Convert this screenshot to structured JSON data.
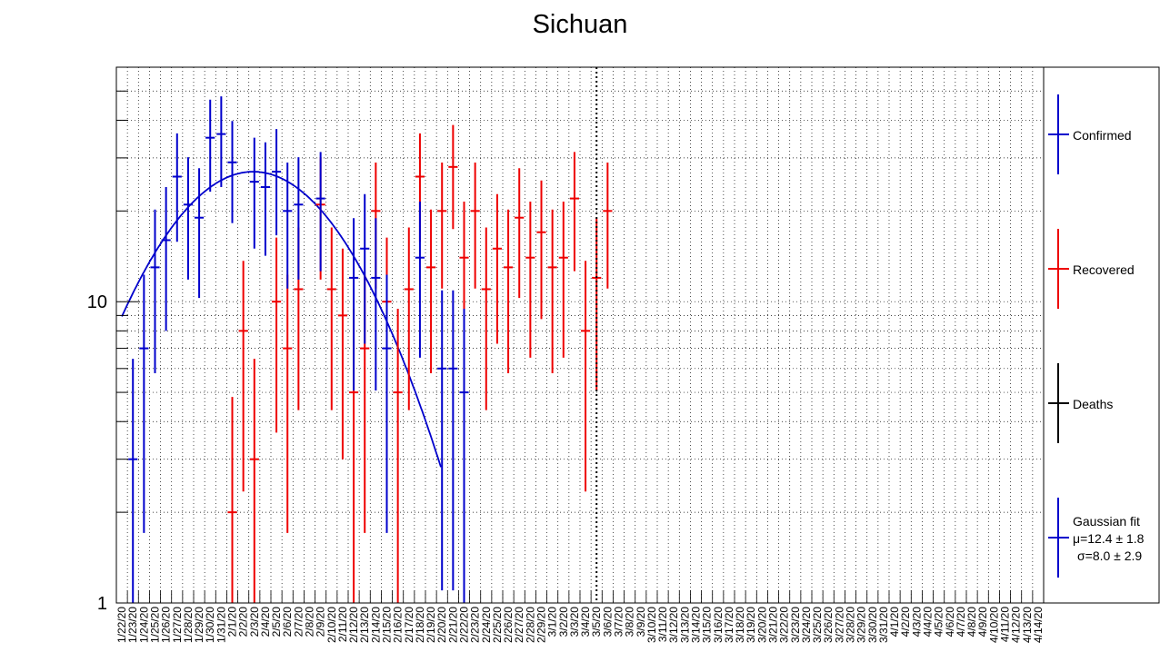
{
  "chart_data": {
    "type": "scatter",
    "title": "Sichuan",
    "xlabel": "",
    "ylabel": "",
    "yscale": "log",
    "ylim": [
      1,
      60
    ],
    "y_ticks": [
      "1",
      "10"
    ],
    "grid": true,
    "legend_position": "right",
    "categories": [
      "1/22/20",
      "1/23/20",
      "1/24/20",
      "1/25/20",
      "1/26/20",
      "1/27/20",
      "1/28/20",
      "1/29/20",
      "1/30/20",
      "1/31/20",
      "2/1/20",
      "2/2/20",
      "2/3/20",
      "2/4/20",
      "2/5/20",
      "2/6/20",
      "2/7/20",
      "2/8/20",
      "2/9/20",
      "2/10/20",
      "2/11/20",
      "2/12/20",
      "2/13/20",
      "2/14/20",
      "2/15/20",
      "2/16/20",
      "2/17/20",
      "2/18/20",
      "2/19/20",
      "2/20/20",
      "2/21/20",
      "2/22/20",
      "2/23/20",
      "2/24/20",
      "2/25/20",
      "2/26/20",
      "2/27/20",
      "2/28/20",
      "2/29/20",
      "3/1/20",
      "3/2/20",
      "3/3/20",
      "3/4/20",
      "3/5/20",
      "3/6/20",
      "3/7/20",
      "3/8/20",
      "3/9/20",
      "3/10/20",
      "3/11/20",
      "3/12/20",
      "3/13/20",
      "3/14/20",
      "3/15/20",
      "3/16/20",
      "3/17/20",
      "3/18/20",
      "3/19/20",
      "3/20/20",
      "3/21/20",
      "3/22/20",
      "3/23/20",
      "3/24/20",
      "3/25/20",
      "3/26/20",
      "3/27/20",
      "3/28/20",
      "3/29/20",
      "3/30/20",
      "3/31/20",
      "4/1/20",
      "4/2/20",
      "4/3/20",
      "4/4/20",
      "4/5/20",
      "4/6/20",
      "4/7/20",
      "4/8/20",
      "4/9/20",
      "4/10/20",
      "4/11/20",
      "4/12/20",
      "4/13/20",
      "4/14/20"
    ],
    "series": [
      {
        "name": "Confirmed",
        "color": "#0000cc",
        "values": [
          null,
          3,
          7,
          13,
          16,
          26,
          21,
          19,
          35,
          36,
          29,
          null,
          25,
          24,
          27,
          20,
          21,
          null,
          22,
          null,
          null,
          12,
          15,
          12,
          7,
          null,
          null,
          14,
          null,
          6,
          6,
          5,
          null,
          null,
          null,
          null,
          null,
          null,
          null,
          null,
          null,
          null,
          null,
          null
        ]
      },
      {
        "name": "Recovered",
        "color": "#ee0000",
        "values": [
          null,
          null,
          null,
          null,
          null,
          null,
          null,
          null,
          null,
          null,
          2,
          8,
          3,
          null,
          10,
          7,
          11,
          null,
          21,
          11,
          9,
          5,
          7,
          20,
          10,
          5,
          11,
          26,
          13,
          20,
          28,
          14,
          20,
          11,
          15,
          13,
          19,
          14,
          17,
          13,
          14,
          22,
          8,
          12,
          20
        ]
      },
      {
        "name": "Deaths",
        "color": "#000000",
        "values": []
      }
    ],
    "fit": {
      "name": "Gaussian fit",
      "color": "#0000cc",
      "amplitude": 27,
      "mu": 12.4,
      "sigma": 8.0,
      "mu_label": "μ=12.4 ± 1.8",
      "sigma_label": "σ=8.0 ± 2.9"
    },
    "vline_category": "3/5/20"
  }
}
